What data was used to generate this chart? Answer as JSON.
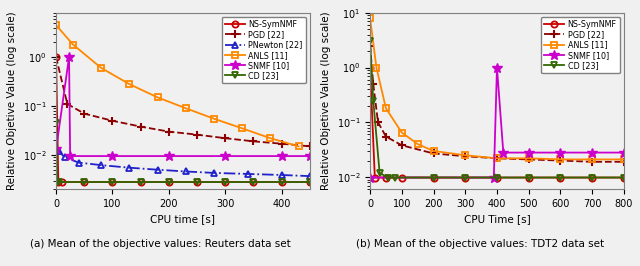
{
  "left_plot": {
    "xlabel": "CPU time [s]",
    "ylabel": "Relative Objetive Value (log scale)",
    "caption": "(a) Mean of the objective values: Reuters data set",
    "xlim": [
      0,
      450
    ],
    "ylim_log": [
      0.002,
      8.0
    ],
    "series": {
      "NS-SymNMF": {
        "color": "#cc0000",
        "linestyle": "-",
        "marker": "o",
        "x": [
          0,
          4,
          10,
          50,
          100,
          150,
          200,
          250,
          300,
          350,
          400,
          450
        ],
        "y": [
          1.0,
          0.0028,
          0.0028,
          0.0028,
          0.0028,
          0.0028,
          0.0028,
          0.0028,
          0.0028,
          0.0028,
          0.0028,
          0.0028
        ]
      },
      "PGD [22]": {
        "color": "#8b0000",
        "linestyle": "--",
        "marker": "+",
        "x": [
          0,
          20,
          50,
          100,
          150,
          200,
          250,
          300,
          350,
          400,
          450
        ],
        "y": [
          1.0,
          0.11,
          0.07,
          0.05,
          0.038,
          0.03,
          0.026,
          0.022,
          0.019,
          0.017,
          0.015
        ]
      },
      "PNewton [22]": {
        "color": "#2222cc",
        "linestyle": "-.",
        "marker": "^",
        "x": [
          0,
          5,
          15,
          40,
          80,
          130,
          180,
          230,
          280,
          340,
          400,
          450
        ],
        "y": [
          0.013,
          0.012,
          0.009,
          0.007,
          0.0062,
          0.0055,
          0.005,
          0.0046,
          0.0043,
          0.0041,
          0.0039,
          0.0037
        ]
      },
      "ANLS [11]": {
        "color": "#ff8800",
        "linestyle": "-",
        "marker": "s",
        "x": [
          0,
          30,
          80,
          130,
          180,
          230,
          280,
          330,
          380,
          430
        ],
        "y": [
          4.5,
          1.8,
          0.6,
          0.28,
          0.15,
          0.09,
          0.055,
          0.035,
          0.022,
          0.015
        ]
      },
      "SNMF [10]": {
        "color": "#cc00cc",
        "linestyle": "-",
        "marker": "*",
        "x": [
          0,
          23,
          25,
          100,
          200,
          300,
          400,
          450
        ],
        "y": [
          0.013,
          1.0,
          0.0095,
          0.0095,
          0.0095,
          0.0095,
          0.0095,
          0.0095
        ]
      },
      "CD [23]": {
        "color": "#336600",
        "linestyle": "-",
        "marker": "v",
        "x": [
          0,
          2,
          5,
          50,
          100,
          150,
          200,
          250,
          300,
          350,
          400,
          450
        ],
        "y": [
          0.045,
          0.0028,
          0.0028,
          0.0028,
          0.0028,
          0.0028,
          0.0028,
          0.0028,
          0.0028,
          0.0028,
          0.0028,
          0.0028
        ]
      }
    }
  },
  "right_plot": {
    "xlabel": "CPU Time [s]",
    "ylabel": "Relative Objetive Value (log scale)",
    "caption": "(b) Mean of the objective values: TDT2 data set",
    "xlim": [
      0,
      800
    ],
    "ylim_log": [
      0.006,
      10.0
    ],
    "series": {
      "NS-SymNMF": {
        "color": "#cc0000",
        "linestyle": "-",
        "marker": "o",
        "x": [
          0,
          15,
          50,
          100,
          200,
          300,
          400,
          500,
          600,
          700,
          800
        ],
        "y": [
          1.0,
          0.0098,
          0.0098,
          0.0098,
          0.0098,
          0.0098,
          0.0098,
          0.0098,
          0.0098,
          0.0098,
          0.0098
        ]
      },
      "PGD [22]": {
        "color": "#8b0000",
        "linestyle": "--",
        "marker": "+",
        "x": [
          0,
          10,
          25,
          50,
          100,
          200,
          300,
          400,
          500,
          600,
          700,
          800
        ],
        "y": [
          2.5,
          0.5,
          0.1,
          0.055,
          0.038,
          0.027,
          0.024,
          0.022,
          0.021,
          0.02,
          0.019,
          0.019
        ]
      },
      "ANLS [11]": {
        "color": "#ff8800",
        "linestyle": "-",
        "marker": "s",
        "x": [
          0,
          20,
          50,
          100,
          150,
          200,
          300,
          400,
          500,
          600,
          700,
          800
        ],
        "y": [
          8.0,
          1.0,
          0.18,
          0.065,
          0.04,
          0.03,
          0.025,
          0.022,
          0.022,
          0.021,
          0.021,
          0.021
        ]
      },
      "SNMF [10]": {
        "color": "#cc00cc",
        "linestyle": "-",
        "marker": "*",
        "x": [
          0,
          390,
          400,
          420,
          500,
          600,
          700,
          800
        ],
        "y": [
          0.0098,
          0.0098,
          1.0,
          0.028,
          0.028,
          0.028,
          0.028,
          0.028
        ]
      },
      "CD [23]": {
        "color": "#336600",
        "linestyle": "-",
        "marker": "v",
        "x": [
          0,
          10,
          30,
          55,
          80,
          200,
          300,
          400,
          500,
          600,
          700,
          800
        ],
        "y": [
          3.0,
          0.25,
          0.012,
          0.0098,
          0.0098,
          0.0098,
          0.0098,
          0.0098,
          0.0098,
          0.0098,
          0.0098,
          0.0098
        ]
      }
    }
  },
  "legend_left": [
    "NS-SymNMF",
    "PGD [22]",
    "PNewton [22]",
    "ANLS [11]",
    "SNMF [10]",
    "CD [23]"
  ],
  "legend_right": [
    "NS-SymNMF",
    "PGD [22]",
    "ANLS [11]",
    "SNMF [10]",
    "CD [23]"
  ],
  "bg_color": "#f0f0f0"
}
